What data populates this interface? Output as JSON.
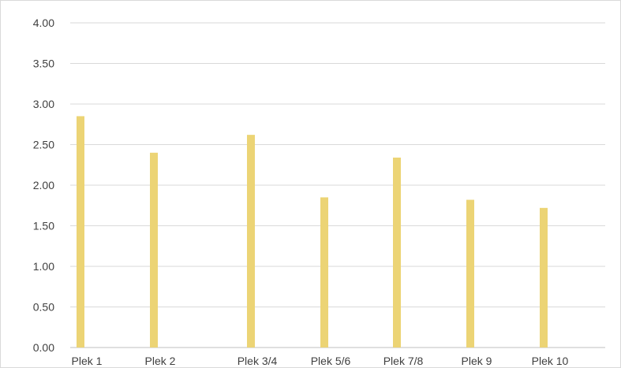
{
  "chart_data": {
    "type": "bar",
    "title": "",
    "xlabel": "",
    "ylabel": "",
    "categories": [
      "Plek 1",
      "Plek 2",
      "Plek 3/4",
      "Plek 5/6",
      "Plek 7/8",
      "Plek 9",
      "Plek 10"
    ],
    "values": [
      2.85,
      2.4,
      2.62,
      1.85,
      2.34,
      1.82,
      1.72
    ],
    "ylim": [
      0,
      4
    ],
    "yticks": [
      "0.00",
      "0.50",
      "1.00",
      "1.50",
      "2.00",
      "2.50",
      "3.00",
      "3.50",
      "4.00"
    ],
    "grid": true,
    "legend": "none",
    "colors": {
      "bar": "#ECD475",
      "grid": "#d9d9d9",
      "axis": "#bfbfbf",
      "text": "#404040"
    }
  }
}
